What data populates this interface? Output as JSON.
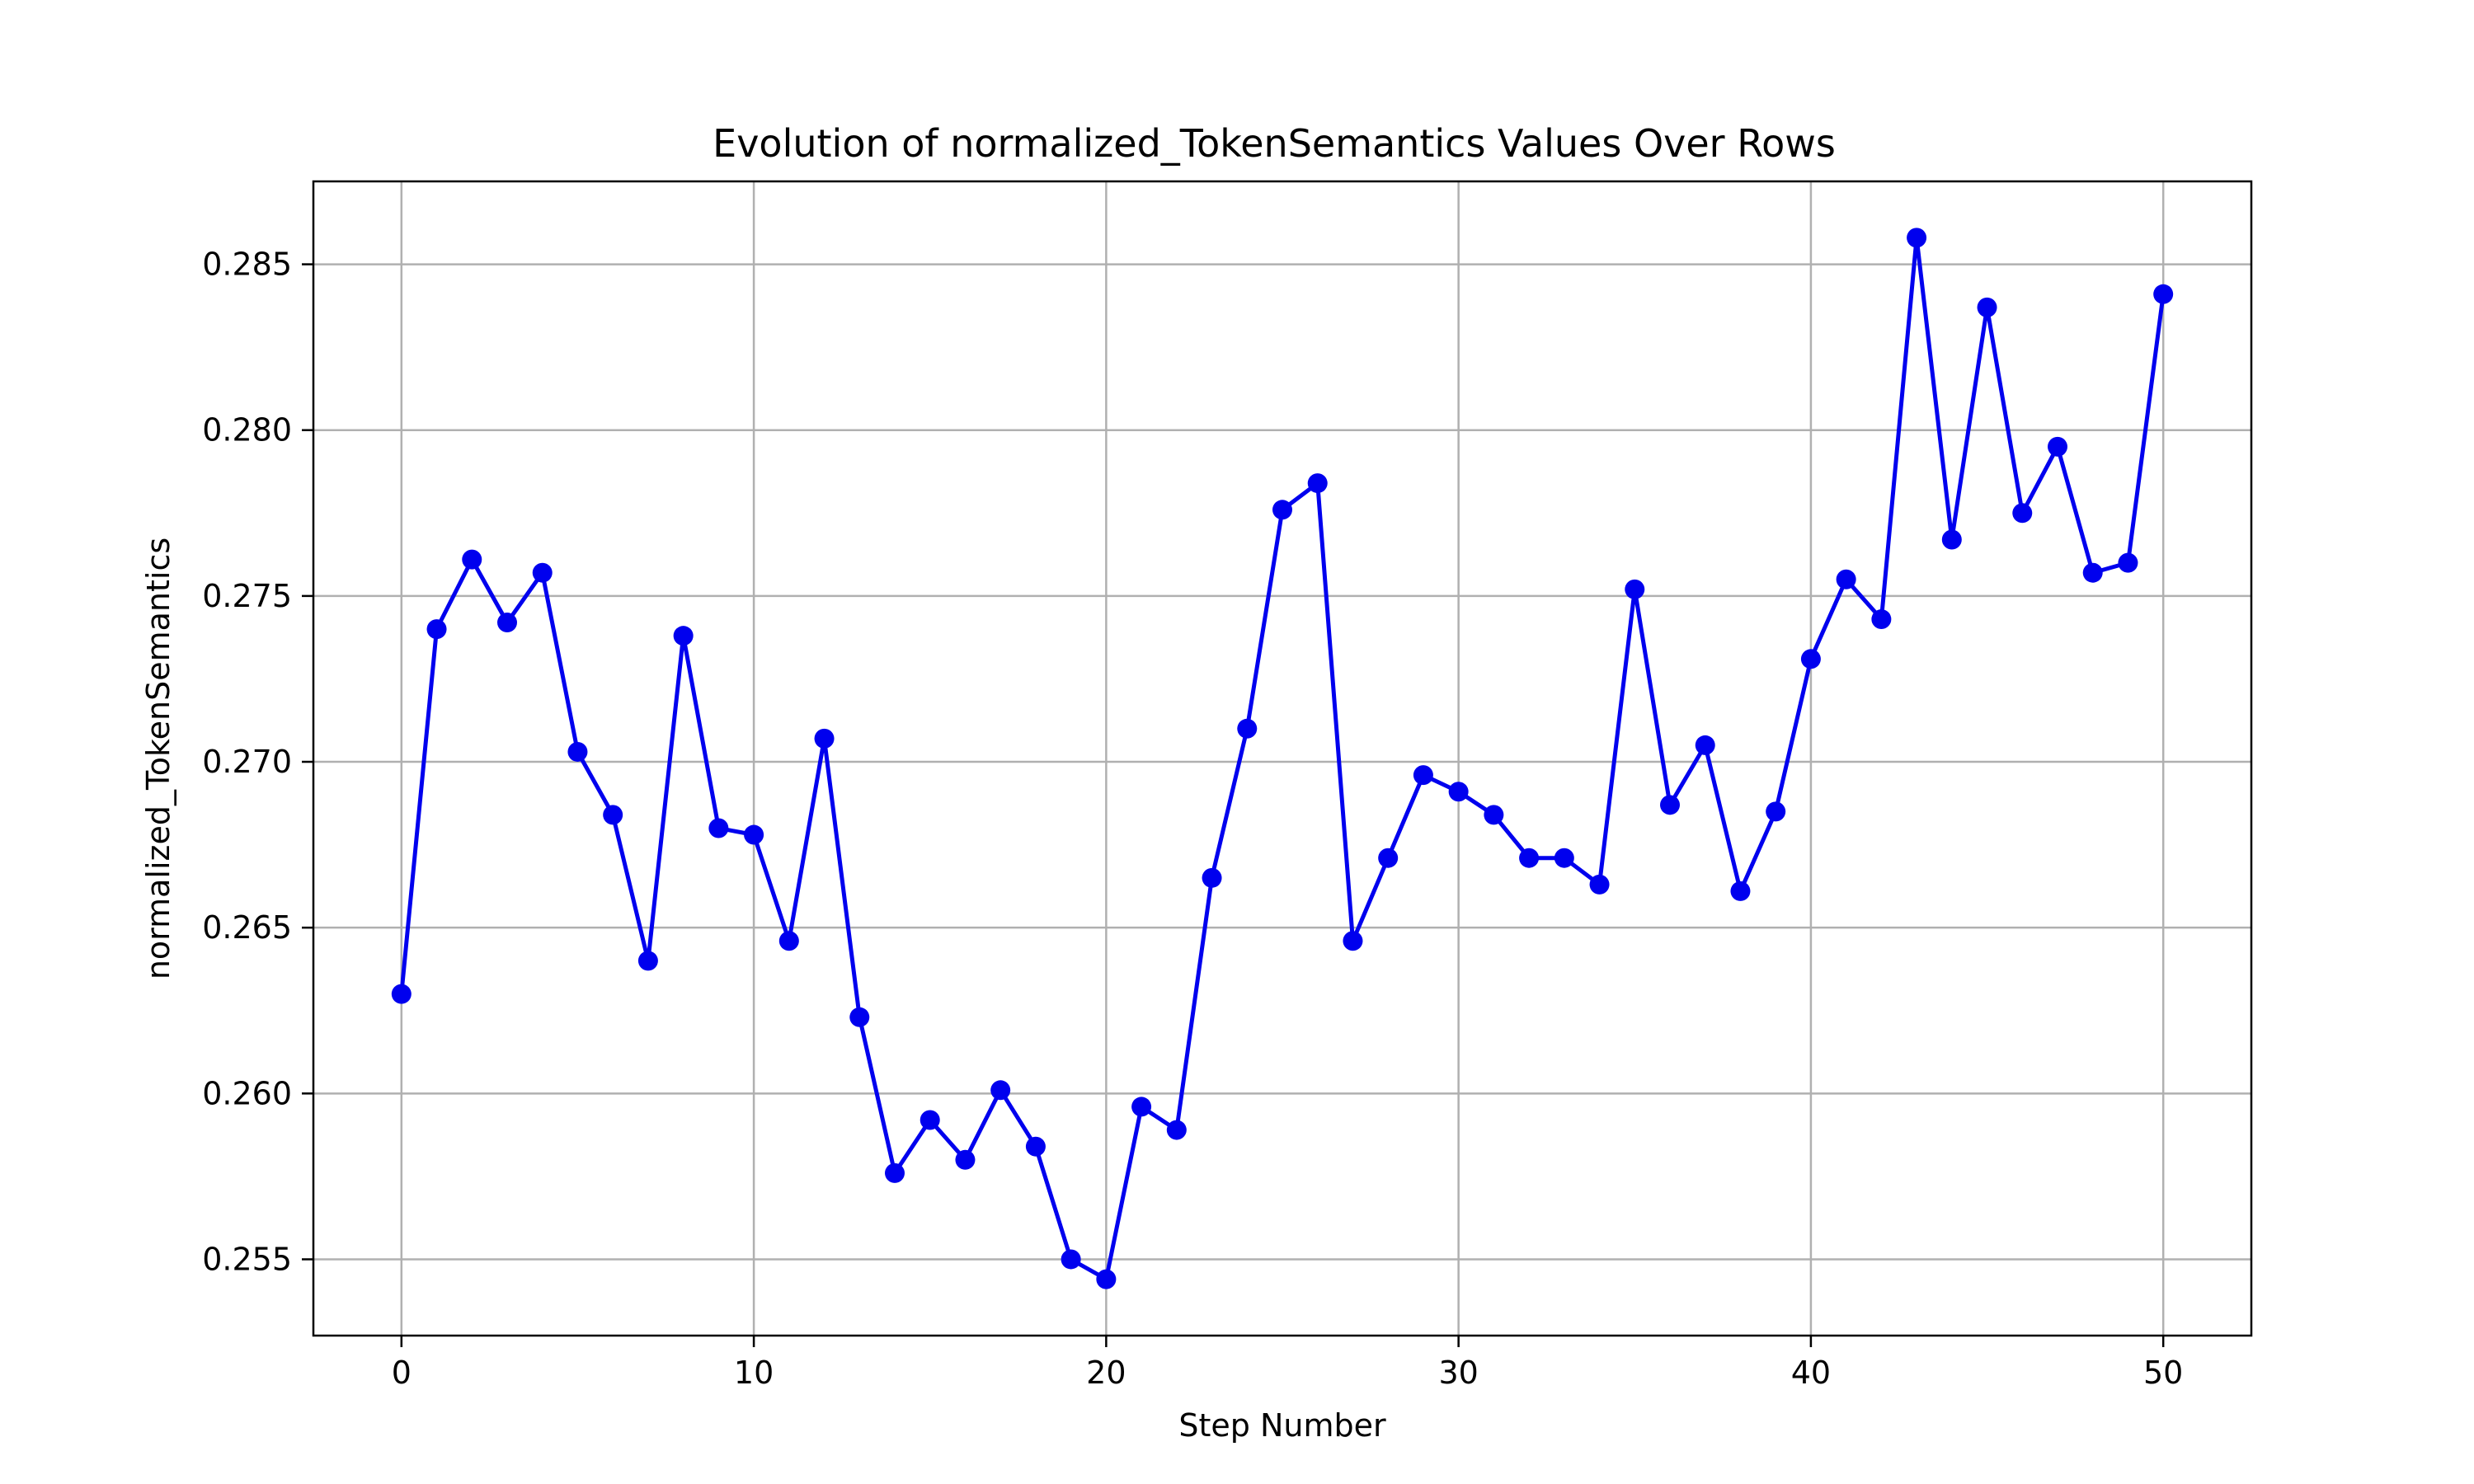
{
  "chart_data": {
    "type": "line",
    "title": "Evolution of normalized_TokenSemantics Values Over Rows",
    "xlabel": "Step Number",
    "ylabel": "normalized_TokenSemantics",
    "xlim": [
      -2.5,
      52.5
    ],
    "ylim": [
      0.2527,
      0.2875
    ],
    "x_ticks": [
      0,
      10,
      20,
      30,
      40,
      50
    ],
    "x_tick_labels": [
      "0",
      "10",
      "20",
      "30",
      "40",
      "50"
    ],
    "y_ticks": [
      0.255,
      0.26,
      0.265,
      0.27,
      0.275,
      0.28,
      0.285
    ],
    "y_tick_labels": [
      "0.255",
      "0.260",
      "0.265",
      "0.270",
      "0.275",
      "0.280",
      "0.285"
    ],
    "grid": true,
    "legend": "none",
    "colors": {
      "line": "#0000ee",
      "marker": "#0000ee",
      "grid": "#b0b0b0"
    },
    "series": [
      {
        "x": [
          0,
          1,
          2,
          3,
          4,
          5,
          6,
          7,
          8,
          9,
          10,
          11,
          12,
          13,
          14,
          15,
          16,
          17,
          18,
          19,
          20,
          21,
          22,
          23,
          24,
          25,
          26,
          27,
          28,
          29,
          30,
          31,
          32,
          33,
          34,
          35,
          36,
          37,
          38,
          39,
          40,
          41,
          42,
          43,
          44,
          45,
          46,
          47,
          48,
          49,
          50
        ],
        "values": [
          0.263,
          0.274,
          0.2761,
          0.2742,
          0.2757,
          0.2703,
          0.2684,
          0.264,
          0.2738,
          0.268,
          0.2678,
          0.2646,
          0.2707,
          0.2623,
          0.2576,
          0.2592,
          0.258,
          0.2601,
          0.2584,
          0.255,
          0.2544,
          0.2596,
          0.2589,
          0.2665,
          0.271,
          0.2776,
          0.2784,
          0.2646,
          0.2671,
          0.2696,
          0.2691,
          0.2684,
          0.2671,
          0.2671,
          0.2663,
          0.2752,
          0.2687,
          0.2705,
          0.2661,
          0.2685,
          0.2731,
          0.2755,
          0.2743,
          0.2858,
          0.2767,
          0.2837,
          0.2775,
          0.2795,
          0.2757,
          0.276,
          0.2841
        ]
      }
    ]
  }
}
